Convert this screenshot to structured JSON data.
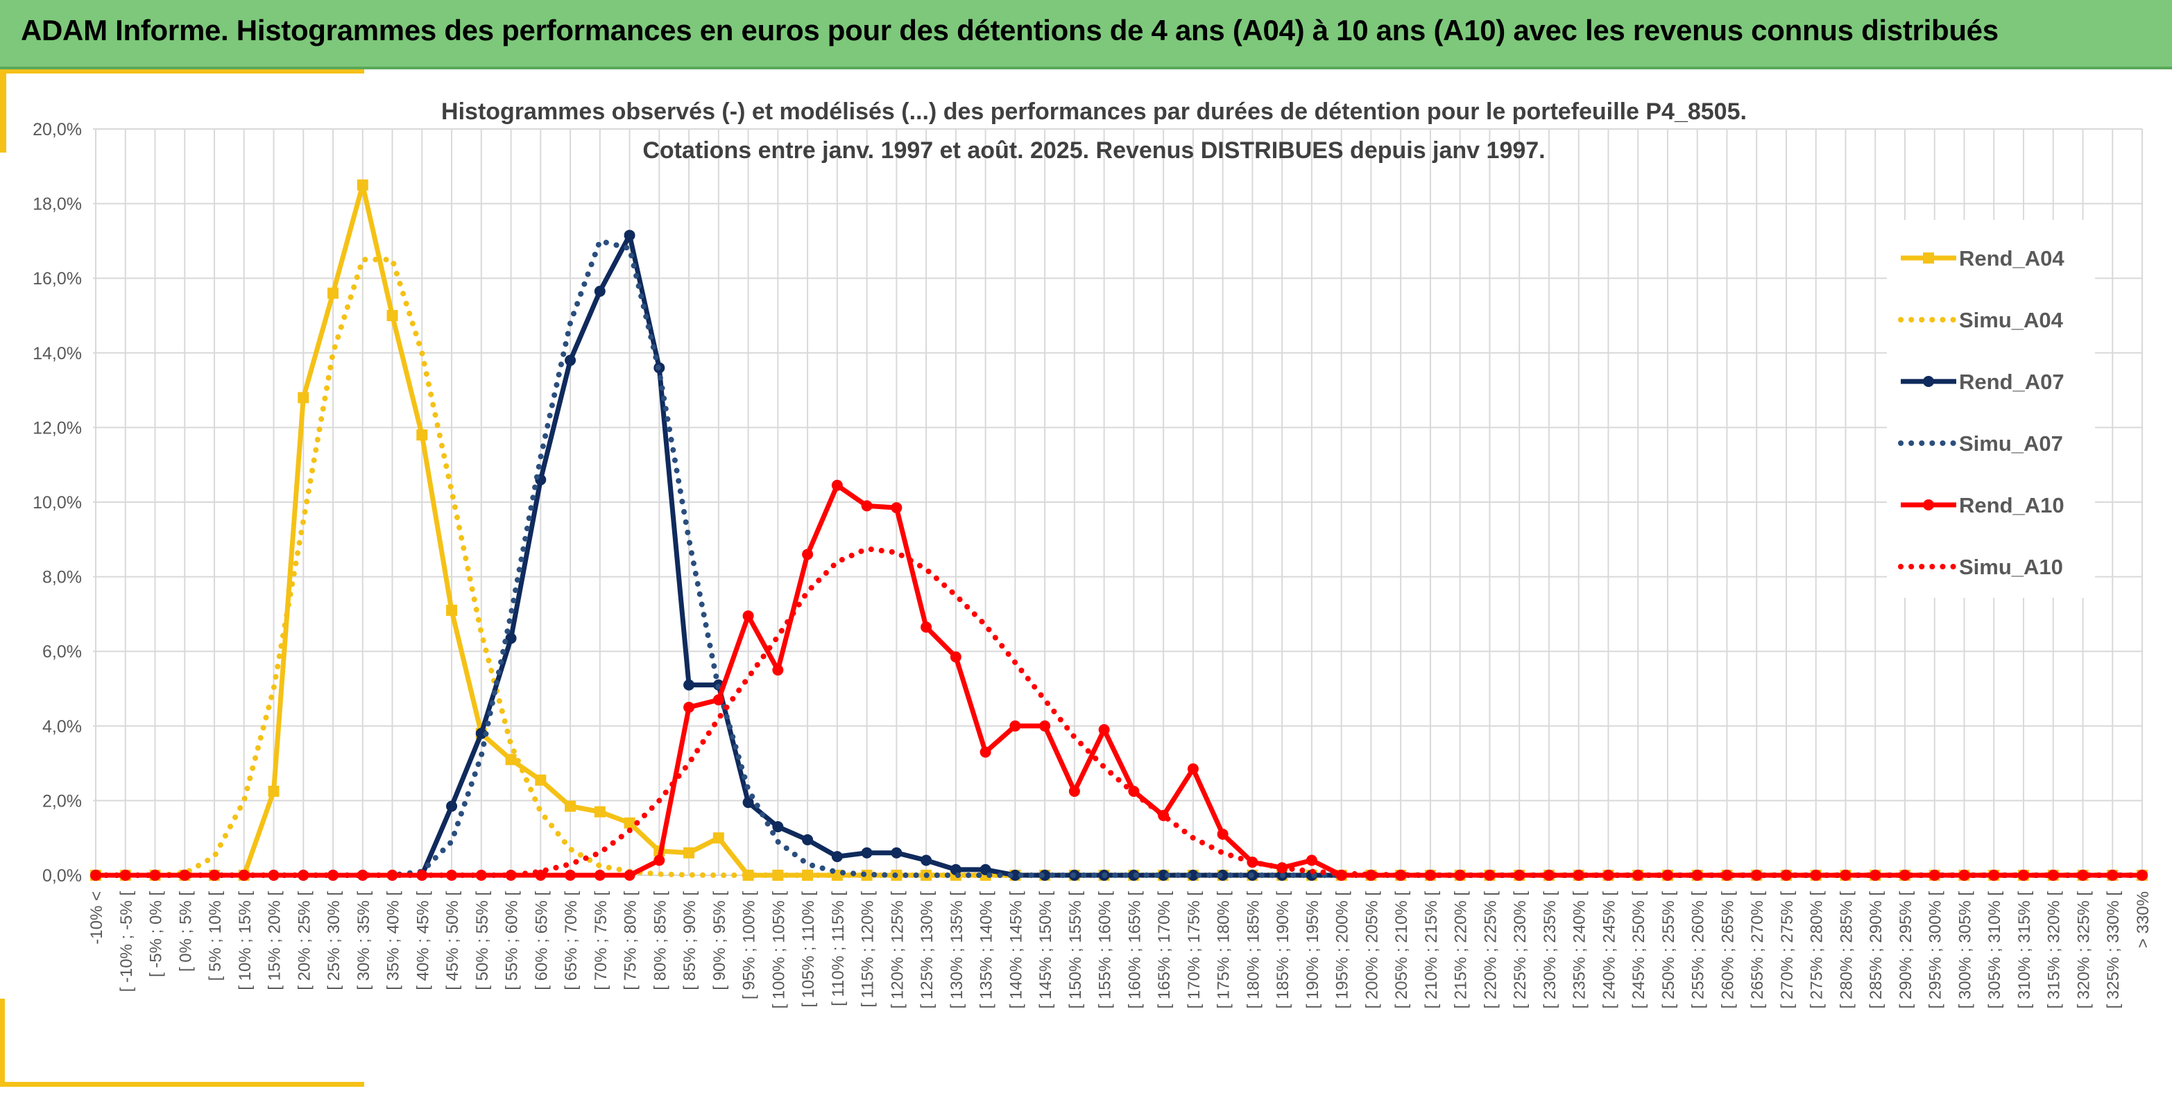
{
  "header": {
    "title": "ADAM Informe. Histogrammes des performances en euros pour des détentions de 4 ans (A04) à 10 ans (A10) avec les revenus connus distribués"
  },
  "colors": {
    "header_bg": "#7dc87b",
    "accent": "#f5c116"
  },
  "chart_data": {
    "type": "line",
    "title_line1": "Histogrammes observés (-) et modélisés (...) des performances par durées de détention pour le portefeuille P4_8505.",
    "title_line2": "Cotations entre janv. 1997 et août. 2025. Revenus DISTRIBUES depuis janv 1997.",
    "ylim": [
      0,
      20
    ],
    "yticks": [
      "0,0%",
      "2,0%",
      "4,0%",
      "6,0%",
      "8,0%",
      "10,0%",
      "12,0%",
      "14,0%",
      "16,0%",
      "18,0%",
      "20,0%"
    ],
    "grid": true,
    "legend_position": "right",
    "categories": [
      "-10% <",
      "[ -10% ; -5% [",
      "[ -5% ; 0% [",
      "[ 0% ; 5% [",
      "[ 5% ; 10% [",
      "[ 10% ; 15% [",
      "[ 15% ; 20% [",
      "[ 20% ; 25% [",
      "[ 25% ; 30% [",
      "[ 30% ; 35% [",
      "[ 35% ; 40% [",
      "[ 40% ; 45% [",
      "[ 45% ; 50% [",
      "[ 50% ; 55% [",
      "[ 55% ; 60% [",
      "[ 60% ; 65% [",
      "[ 65% ; 70% [",
      "[ 70% ; 75% [",
      "[ 75% ; 80% [",
      "[ 80% ; 85% [",
      "[ 85% ; 90% [",
      "[ 90% ; 95% [",
      "[ 95% ; 100% [",
      "[ 100% ; 105% [",
      "[ 105% ; 110% [",
      "[ 110% ; 115% [",
      "[ 115% ; 120% [",
      "[ 120% ; 125% [",
      "[ 125% ; 130% [",
      "[ 130% ; 135% [",
      "[ 135% ; 140% [",
      "[ 140% ; 145% [",
      "[ 145% ; 150% [",
      "[ 150% ; 155% [",
      "[ 155% ; 160% [",
      "[ 160% ; 165% [",
      "[ 165% ; 170% [",
      "[ 170% ; 175% [",
      "[ 175% ; 180% [",
      "[ 180% ; 185% [",
      "[ 185% ; 190% [",
      "[ 190% ; 195% [",
      "[ 195% ; 200% [",
      "[ 200% ; 205% [",
      "[ 205% ; 210% [",
      "[ 210% ; 215% [",
      "[ 215% ; 220% [",
      "[ 220% ; 225% [",
      "[ 225% ; 230% [",
      "[ 230% ; 235% [",
      "[ 235% ; 240% [",
      "[ 240% ; 245% [",
      "[ 245% ; 250% [",
      "[ 250% ; 255% [",
      "[ 255% ; 260% [",
      "[ 260% ; 265% [",
      "[ 265% ; 270% [",
      "[ 270% ; 275% [",
      "[ 275% ; 280% [",
      "[ 280% ; 285% [",
      "[ 285% ; 290% [",
      "[ 290% ; 295% [",
      "[ 295% ; 300% [",
      "[ 300% ; 305% [",
      "[ 305% ; 310% [",
      "[ 310% ; 315% [",
      "[ 315% ; 320% [",
      "[ 320% ; 325% [",
      "[ 325% ; 330% [",
      "> 330%"
    ],
    "series": [
      {
        "name": "Rend_A04",
        "color": "#f5c116",
        "style": "solid",
        "marker": "square",
        "values": [
          0,
          0,
          0,
          0,
          0,
          0,
          2.25,
          12.8,
          15.6,
          18.5,
          15.0,
          11.8,
          7.1,
          3.8,
          3.1,
          2.55,
          1.85,
          1.7,
          1.4,
          0.65,
          0.6,
          1.0,
          0,
          0,
          0,
          0,
          0,
          0,
          0,
          0,
          0,
          0,
          0,
          0,
          0,
          0,
          0,
          0,
          0,
          0,
          0,
          0,
          0,
          0,
          0,
          0,
          0,
          0,
          0,
          0,
          0,
          0,
          0,
          0,
          0,
          0,
          0,
          0,
          0,
          0,
          0,
          0,
          0,
          0,
          0,
          0,
          0,
          0,
          0,
          0
        ]
      },
      {
        "name": "Simu_A04",
        "color": "#f5c116",
        "style": "dotted",
        "marker": "none",
        "values": [
          0,
          0,
          0,
          0.05,
          0.5,
          2.0,
          5.0,
          9.5,
          14.0,
          16.5,
          16.5,
          14.0,
          10.3,
          6.5,
          3.5,
          1.7,
          0.7,
          0.25,
          0.1,
          0.03,
          0.01,
          0,
          0,
          0,
          0,
          0,
          0,
          0,
          0,
          0,
          0,
          0,
          0,
          0,
          0,
          0,
          0,
          0,
          0,
          0,
          0,
          0,
          0,
          0,
          0,
          0,
          0,
          0,
          0,
          0,
          0,
          0,
          0,
          0,
          0,
          0,
          0,
          0,
          0,
          0,
          0,
          0,
          0,
          0,
          0,
          0,
          0,
          0,
          0,
          0
        ]
      },
      {
        "name": "Rend_A07",
        "color": "#0f2a5c",
        "style": "solid",
        "marker": "circle",
        "values": [
          0,
          0,
          0,
          0,
          0,
          0,
          0,
          0,
          0,
          0,
          0,
          0,
          1.85,
          3.8,
          6.35,
          10.6,
          13.8,
          15.65,
          17.15,
          13.6,
          5.1,
          5.1,
          1.95,
          1.3,
          0.95,
          0.5,
          0.6,
          0.6,
          0.4,
          0.15,
          0.15,
          0,
          0,
          0,
          0,
          0,
          0,
          0,
          0,
          0,
          0,
          0,
          0,
          0,
          0,
          0,
          0,
          0,
          0,
          0,
          0,
          0,
          0,
          0,
          0,
          0,
          0,
          0,
          0,
          0,
          0,
          0,
          0,
          0,
          0,
          0,
          0,
          0,
          0,
          0
        ]
      },
      {
        "name": "Simu_A07",
        "color": "#2a4e7e",
        "style": "dotted",
        "marker": "none",
        "values": [
          0,
          0,
          0,
          0,
          0,
          0,
          0,
          0,
          0,
          0,
          0,
          0.1,
          0.9,
          3.2,
          7.0,
          11.2,
          14.8,
          17.0,
          16.8,
          13.5,
          9.0,
          5.0,
          2.3,
          0.9,
          0.3,
          0.08,
          0.02,
          0,
          0,
          0,
          0,
          0,
          0,
          0,
          0,
          0,
          0,
          0,
          0,
          0,
          0,
          0,
          0,
          0,
          0,
          0,
          0,
          0,
          0,
          0,
          0,
          0,
          0,
          0,
          0,
          0,
          0,
          0,
          0,
          0,
          0,
          0,
          0,
          0,
          0,
          0,
          0,
          0,
          0,
          0
        ]
      },
      {
        "name": "Rend_A10",
        "color": "#ff0000",
        "style": "solid",
        "marker": "circle",
        "values": [
          0,
          0,
          0,
          0,
          0,
          0,
          0,
          0,
          0,
          0,
          0,
          0,
          0,
          0,
          0,
          0,
          0,
          0,
          0,
          0.4,
          4.5,
          4.7,
          6.95,
          5.5,
          8.6,
          10.45,
          9.9,
          9.85,
          6.65,
          5.85,
          3.3,
          4.0,
          4.0,
          2.25,
          3.9,
          2.25,
          1.6,
          2.85,
          1.1,
          0.35,
          0.2,
          0.4,
          0,
          0,
          0,
          0,
          0,
          0,
          0,
          0,
          0,
          0,
          0,
          0,
          0,
          0,
          0,
          0,
          0,
          0,
          0,
          0,
          0,
          0,
          0,
          0,
          0,
          0,
          0,
          0
        ]
      },
      {
        "name": "Simu_A10",
        "color": "#ff0000",
        "style": "dotted",
        "marker": "none",
        "values": [
          0,
          0,
          0,
          0,
          0,
          0,
          0,
          0,
          0,
          0,
          0,
          0,
          0,
          0,
          0,
          0.1,
          0.3,
          0.6,
          1.2,
          2.0,
          3.0,
          4.2,
          5.3,
          6.4,
          7.6,
          8.4,
          8.75,
          8.65,
          8.2,
          7.5,
          6.7,
          5.7,
          4.7,
          3.7,
          2.9,
          2.2,
          1.6,
          1.0,
          0.6,
          0.35,
          0.2,
          0.1,
          0.05,
          0.02,
          0.01,
          0,
          0,
          0,
          0,
          0,
          0,
          0,
          0,
          0,
          0,
          0,
          0,
          0,
          0,
          0,
          0,
          0,
          0,
          0,
          0,
          0,
          0,
          0,
          0,
          0
        ]
      }
    ]
  }
}
